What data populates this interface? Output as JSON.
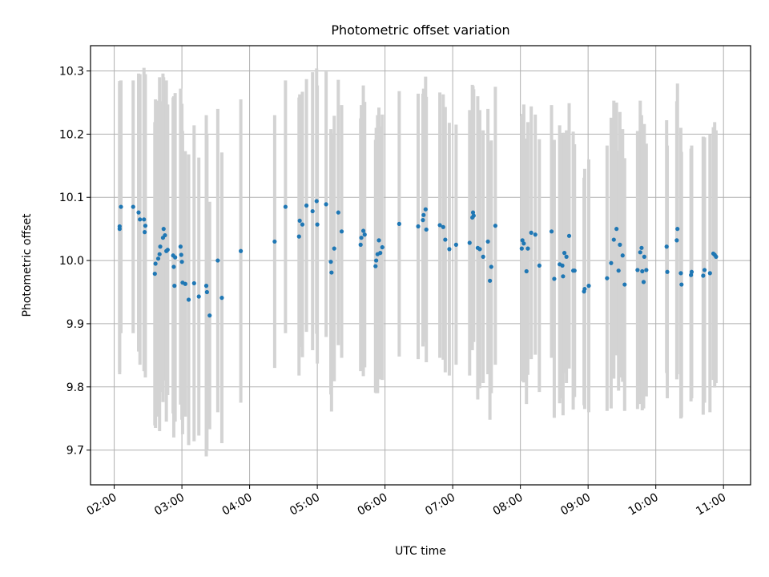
{
  "chart_data": {
    "type": "scatter",
    "title": "Photometric offset variation",
    "xlabel": "UTC time",
    "ylabel": "Photometric offset",
    "x_unit": "hour",
    "xlim": [
      1.65,
      11.4
    ],
    "ylim": [
      9.645,
      10.34
    ],
    "xticks": [
      2,
      3,
      4,
      5,
      6,
      7,
      8,
      9,
      10,
      11
    ],
    "xtick_labels": [
      "02:00",
      "03:00",
      "04:00",
      "05:00",
      "06:00",
      "07:00",
      "08:00",
      "09:00",
      "10:00",
      "11:00"
    ],
    "yticks": [
      9.7,
      9.8,
      9.9,
      10.0,
      10.1,
      10.2,
      10.3
    ],
    "ytick_labels": [
      "9.7",
      "9.8",
      "9.9",
      "10.0",
      "10.1",
      "10.2",
      "10.3"
    ],
    "grid": true,
    "colors": {
      "points": "#1f77b4",
      "errorbars": "#d3d3d3"
    },
    "series": [
      {
        "points": [
          [
            2.08,
            10.05,
            0.23
          ],
          [
            2.08,
            10.054,
            0.23
          ],
          [
            2.1,
            10.085,
            0.2
          ],
          [
            2.28,
            10.085,
            0.2
          ],
          [
            2.36,
            10.076,
            0.22
          ],
          [
            2.38,
            10.065,
            0.23
          ],
          [
            2.44,
            10.065,
            0.24
          ],
          [
            2.45,
            10.045,
            0.22
          ],
          [
            2.46,
            10.055,
            0.24
          ],
          [
            2.6,
            9.979,
            0.24
          ],
          [
            2.61,
            9.995,
            0.26
          ],
          [
            2.65,
            10.003,
            0.25
          ],
          [
            2.67,
            10.01,
            0.28
          ],
          [
            2.68,
            10.022,
            0.23
          ],
          [
            2.72,
            10.036,
            0.26
          ],
          [
            2.73,
            10.05,
            0.24
          ],
          [
            2.75,
            10.04,
            0.22
          ],
          [
            2.77,
            10.015,
            0.27
          ],
          [
            2.79,
            10.017,
            0.23
          ],
          [
            2.87,
            10.008,
            0.25
          ],
          [
            2.88,
            9.99,
            0.27
          ],
          [
            2.89,
            9.96,
            0.21
          ],
          [
            2.9,
            10.005,
            0.26
          ],
          [
            2.98,
            10.022,
            0.25
          ],
          [
            2.99,
            10.009,
            0.23
          ],
          [
            3.0,
            9.998,
            0.25
          ],
          [
            3.01,
            9.965,
            0.24
          ],
          [
            3.05,
            9.963,
            0.21
          ],
          [
            3.1,
            9.938,
            0.23
          ],
          [
            3.18,
            9.964,
            0.25
          ],
          [
            3.25,
            9.943,
            0.22
          ],
          [
            3.36,
            9.96,
            0.27
          ],
          [
            3.37,
            9.95,
            0.25
          ],
          [
            3.41,
            9.913,
            0.18
          ],
          [
            3.53,
            10.0,
            0.24
          ],
          [
            3.59,
            9.941,
            0.23
          ],
          [
            3.87,
            10.015,
            0.24
          ],
          [
            4.37,
            10.03,
            0.2
          ],
          [
            4.53,
            10.085,
            0.2
          ],
          [
            4.73,
            10.038,
            0.22
          ],
          [
            4.74,
            10.063,
            0.2
          ],
          [
            4.78,
            10.057,
            0.21
          ],
          [
            4.84,
            10.087,
            0.2
          ],
          [
            4.93,
            10.078,
            0.22
          ],
          [
            4.99,
            10.094,
            0.21
          ],
          [
            5.0,
            10.057,
            0.22
          ],
          [
            5.13,
            10.089,
            0.21
          ],
          [
            5.2,
            9.998,
            0.21
          ],
          [
            5.21,
            9.981,
            0.22
          ],
          [
            5.25,
            10.019,
            0.21
          ],
          [
            5.31,
            10.076,
            0.21
          ],
          [
            5.36,
            10.046,
            0.2
          ],
          [
            5.64,
            10.025,
            0.2
          ],
          [
            5.65,
            10.036,
            0.21
          ],
          [
            5.68,
            10.047,
            0.23
          ],
          [
            5.7,
            10.041,
            0.21
          ],
          [
            5.86,
            9.991,
            0.2
          ],
          [
            5.87,
            10.0,
            0.21
          ],
          [
            5.89,
            10.01,
            0.22
          ],
          [
            5.91,
            10.032,
            0.21
          ],
          [
            5.93,
            10.012,
            0.2
          ],
          [
            5.96,
            10.021,
            0.21
          ],
          [
            6.21,
            10.058,
            0.21
          ],
          [
            6.49,
            10.054,
            0.21
          ],
          [
            6.56,
            10.064,
            0.2
          ],
          [
            6.57,
            10.072,
            0.2
          ],
          [
            6.6,
            10.081,
            0.21
          ],
          [
            6.61,
            10.049,
            0.21
          ],
          [
            6.81,
            10.056,
            0.21
          ],
          [
            6.86,
            10.053,
            0.21
          ],
          [
            6.89,
            10.033,
            0.21
          ],
          [
            6.95,
            10.018,
            0.2
          ],
          [
            7.05,
            10.025,
            0.19
          ],
          [
            7.25,
            10.028,
            0.21
          ],
          [
            7.29,
            10.068,
            0.21
          ],
          [
            7.3,
            10.076,
            0.2
          ],
          [
            7.31,
            10.071,
            0.2
          ],
          [
            7.37,
            10.02,
            0.24
          ],
          [
            7.4,
            10.018,
            0.22
          ],
          [
            7.45,
            10.006,
            0.2
          ],
          [
            7.52,
            10.03,
            0.21
          ],
          [
            7.55,
            9.968,
            0.22
          ],
          [
            7.57,
            9.99,
            0.2
          ],
          [
            7.63,
            10.055,
            0.22
          ],
          [
            8.02,
            10.019,
            0.21
          ],
          [
            8.03,
            10.032,
            0.2
          ],
          [
            8.05,
            10.027,
            0.22
          ],
          [
            8.09,
            9.983,
            0.21
          ],
          [
            8.11,
            10.019,
            0.2
          ],
          [
            8.16,
            10.044,
            0.2
          ],
          [
            8.22,
            10.041,
            0.19
          ],
          [
            8.28,
            9.992,
            0.2
          ],
          [
            8.46,
            10.046,
            0.2
          ],
          [
            8.5,
            9.971,
            0.22
          ],
          [
            8.58,
            9.994,
            0.22
          ],
          [
            8.62,
            9.992,
            0.21
          ],
          [
            8.63,
            9.975,
            0.22
          ],
          [
            8.65,
            10.012,
            0.19
          ],
          [
            8.68,
            10.006,
            0.2
          ],
          [
            8.72,
            10.039,
            0.21
          ],
          [
            8.78,
            9.984,
            0.22
          ],
          [
            8.8,
            9.984,
            0.2
          ],
          [
            8.94,
            9.951,
            0.18
          ],
          [
            8.95,
            9.955,
            0.19
          ],
          [
            9.01,
            9.96,
            0.2
          ],
          [
            9.28,
            9.972,
            0.21
          ],
          [
            9.34,
            9.996,
            0.23
          ],
          [
            9.38,
            10.033,
            0.22
          ],
          [
            9.42,
            10.05,
            0.2
          ],
          [
            9.45,
            9.984,
            0.19
          ],
          [
            9.47,
            10.025,
            0.21
          ],
          [
            9.51,
            10.008,
            0.2
          ],
          [
            9.54,
            9.962,
            0.2
          ],
          [
            9.73,
            9.985,
            0.22
          ],
          [
            9.77,
            10.013,
            0.24
          ],
          [
            9.79,
            10.02,
            0.21
          ],
          [
            9.8,
            9.983,
            0.22
          ],
          [
            9.82,
            9.966,
            0.2
          ],
          [
            9.83,
            10.006,
            0.21
          ],
          [
            9.86,
            9.985,
            0.2
          ],
          [
            10.16,
            10.022,
            0.2
          ],
          [
            10.17,
            9.982,
            0.2
          ],
          [
            10.31,
            10.032,
            0.22
          ],
          [
            10.32,
            10.05,
            0.23
          ],
          [
            10.37,
            9.98,
            0.23
          ],
          [
            10.38,
            9.962,
            0.21
          ],
          [
            10.52,
            9.977,
            0.2
          ],
          [
            10.53,
            9.982,
            0.2
          ],
          [
            10.7,
            9.976,
            0.22
          ],
          [
            10.72,
            9.985,
            0.21
          ],
          [
            10.8,
            9.98,
            0.22
          ],
          [
            10.85,
            10.011,
            0.2
          ],
          [
            10.87,
            10.009,
            0.21
          ],
          [
            10.89,
            10.006,
            0.2
          ]
        ]
      }
    ]
  }
}
